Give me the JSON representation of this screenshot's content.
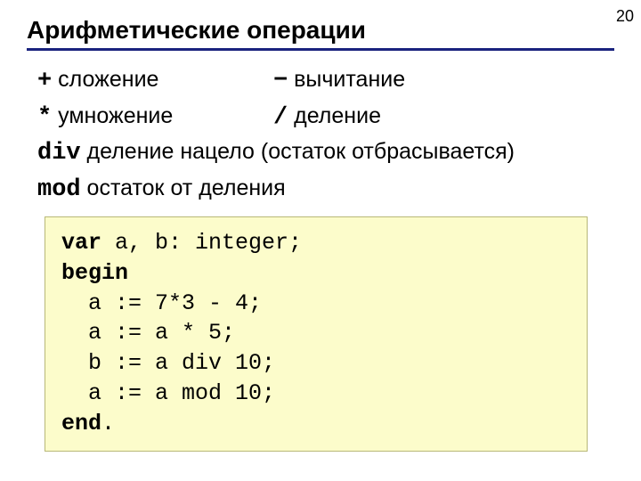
{
  "page_number": "20",
  "title": "Арифметические операции",
  "ops": {
    "plus_sym": "+",
    "plus_text": " сложение",
    "minus_sym": "−",
    "minus_text": " вычитание",
    "mul_sym": "*",
    "mul_text": " умножение",
    "div_sym": "/",
    "div_text": " деление",
    "divkw": "div",
    "divkw_text": " деление нацело (остаток отбрасывается)",
    "modkw": "mod",
    "modkw_text": " остаток от деления"
  },
  "code": {
    "l1a": "var",
    "l1b": " a, b: integer;",
    "l2a": "begin",
    "l3": "  a := 7*3 - 4;",
    "l4": "  a := a * 5;",
    "l5": "  b := a div 10;",
    "l6": "  a := a mod 10;",
    "l7a": "end",
    "l7b": "."
  },
  "colors": {
    "rule": "#1a237e",
    "codebox_bg": "#fcfccb",
    "codebox_border": "#b8b878"
  }
}
